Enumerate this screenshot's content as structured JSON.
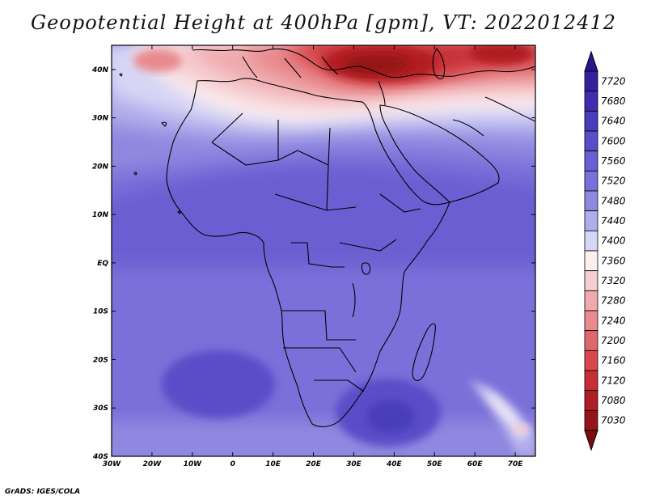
{
  "title": "Geopotential Height at 400hPa [gpm], VT: 2022012412",
  "footer": "GrADS: IGES/COLA",
  "map": {
    "lon_range": [
      -30,
      75
    ],
    "lat_range": [
      -40,
      45
    ],
    "lon_ticks": [
      {
        "value": -30,
        "label": "30W"
      },
      {
        "value": -20,
        "label": "20W"
      },
      {
        "value": -10,
        "label": "10W"
      },
      {
        "value": 0,
        "label": "0"
      },
      {
        "value": 10,
        "label": "10E"
      },
      {
        "value": 20,
        "label": "20E"
      },
      {
        "value": 30,
        "label": "30E"
      },
      {
        "value": 40,
        "label": "40E"
      },
      {
        "value": 50,
        "label": "50E"
      },
      {
        "value": 60,
        "label": "60E"
      },
      {
        "value": 70,
        "label": "70E"
      }
    ],
    "lat_ticks": [
      {
        "value": 40,
        "label": "40N"
      },
      {
        "value": 30,
        "label": "30N"
      },
      {
        "value": 20,
        "label": "20N"
      },
      {
        "value": 10,
        "label": "10N"
      },
      {
        "value": 0,
        "label": "EQ"
      },
      {
        "value": -10,
        "label": "10S"
      },
      {
        "value": -20,
        "label": "20S"
      },
      {
        "value": -30,
        "label": "30S"
      },
      {
        "value": -40,
        "label": "40S"
      }
    ]
  },
  "colorbar": {
    "levels": [
      {
        "label": "7720",
        "color": "#3a1ea0"
      },
      {
        "label": "7680",
        "color": "#3f2cae"
      },
      {
        "label": "7640",
        "color": "#4a3cbc"
      },
      {
        "label": "7600",
        "color": "#5a4dc8"
      },
      {
        "label": "7560",
        "color": "#6a5fd2"
      },
      {
        "label": "7520",
        "color": "#7a70d9"
      },
      {
        "label": "7480",
        "color": "#8f88e0"
      },
      {
        "label": "7440",
        "color": "#b1aceb"
      },
      {
        "label": "7400",
        "color": "#d7d5f5"
      },
      {
        "label": "7360",
        "color": "#fbeff0"
      },
      {
        "label": "7320",
        "color": "#f6cdd0"
      },
      {
        "label": "7280",
        "color": "#efaaae"
      },
      {
        "label": "7240",
        "color": "#e88a8e"
      },
      {
        "label": "7200",
        "color": "#e0686d"
      },
      {
        "label": "7160",
        "color": "#d6484e"
      },
      {
        "label": "7120",
        "color": "#c62e35"
      },
      {
        "label": "7080",
        "color": "#b01d24"
      },
      {
        "label": "7030",
        "color": "#951419"
      }
    ],
    "top_arrow_color": "#2a1590",
    "bottom_arrow_color": "#7d0c10"
  }
}
